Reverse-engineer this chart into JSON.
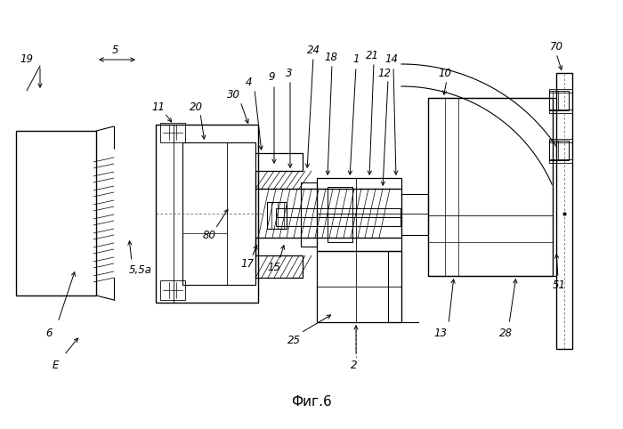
{
  "title": "Фиг.6",
  "bg": "#ffffff",
  "lc": "#000000",
  "fig_w": 7.0,
  "fig_h": 4.82,
  "dpi": 100
}
